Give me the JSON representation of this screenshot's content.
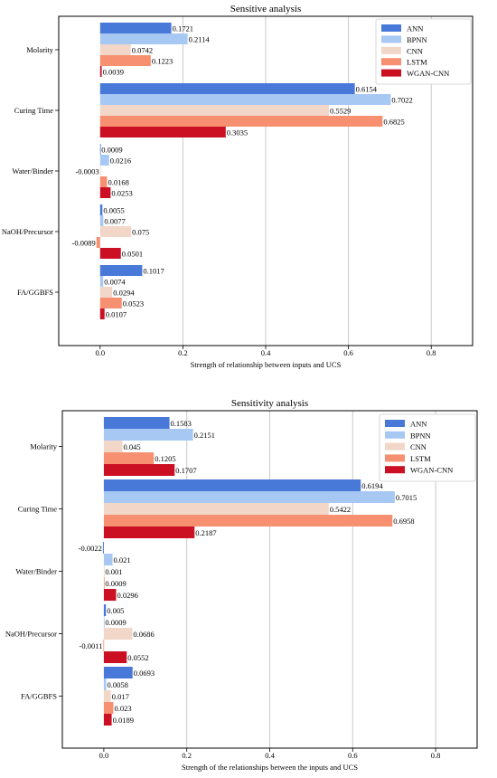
{
  "colors": {
    "ANN": "#4878d8",
    "BPNN": "#a8c8f4",
    "CNN": "#f2d6c8",
    "LSTM": "#f69070",
    "WGAN-CNN": "#cc1024",
    "grid": "#c8c8c8",
    "axis": "#000000"
  },
  "chart_data": [
    {
      "type": "bar",
      "orientation": "horizontal",
      "title": "Sensitive analysis",
      "xlabel": "Strength of relationship between inputs and UCS",
      "ylabel": "",
      "xlim": [
        -0.1,
        0.9
      ],
      "xticks": [
        "0.0",
        "0.2",
        "0.4",
        "0.6",
        "0.8"
      ],
      "grid": "vertical",
      "legend_position": "top-right",
      "categories": [
        "Molarity",
        "Curing Time",
        "Water/Binder",
        "NaOH/Precursor",
        "FA/GGBFS"
      ],
      "series": [
        {
          "name": "ANN",
          "values": [
            0.1721,
            0.6154,
            0.0009,
            0.0055,
            0.1017
          ]
        },
        {
          "name": "BPNN",
          "values": [
            0.2114,
            0.7022,
            0.0216,
            0.0077,
            0.0074
          ]
        },
        {
          "name": "CNN",
          "values": [
            0.0742,
            0.5529,
            -0.0003,
            0.075,
            0.0294
          ]
        },
        {
          "name": "LSTM",
          "values": [
            0.1223,
            0.6825,
            0.0168,
            -0.0089,
            0.0523
          ]
        },
        {
          "name": "WGAN-CNN",
          "values": [
            0.0039,
            0.3035,
            0.0253,
            0.0501,
            0.0107
          ]
        }
      ],
      "labels": [
        [
          "0.1721",
          "0.6154",
          "0.0009",
          "0.0055",
          "0.1017"
        ],
        [
          "0.2114",
          "0.7022",
          "0.0216",
          "0.0077",
          "0.0074"
        ],
        [
          "0.0742",
          "0.5529",
          "-0.0003",
          "0.075",
          "0.0294"
        ],
        [
          "0.1223",
          "0.6825",
          "0.0168",
          "-0.0089",
          "0.0523"
        ],
        [
          "0.0039",
          "0.3035",
          "0.0253",
          "0.0501",
          "0.0107"
        ]
      ]
    },
    {
      "type": "bar",
      "orientation": "horizontal",
      "title": "Sensitivity analysis",
      "xlabel": "Strength of the relationships between the inputs and UCS",
      "ylabel": "",
      "xlim": [
        -0.1,
        0.9
      ],
      "xticks": [
        "0.0",
        "0.2",
        "0.4",
        "0.6",
        "0.8"
      ],
      "grid": "vertical",
      "legend_position": "top-right",
      "categories": [
        "Molarity",
        "Curing Time",
        "Water/Binder",
        "NaOH/Precursor",
        "FA/GGBFS"
      ],
      "series": [
        {
          "name": "ANN",
          "values": [
            0.1583,
            0.6194,
            -0.0022,
            0.005,
            0.0693
          ]
        },
        {
          "name": "BPNN",
          "values": [
            0.2151,
            0.7015,
            0.021,
            0.0009,
            0.0058
          ]
        },
        {
          "name": "CNN",
          "values": [
            0.045,
            0.5422,
            0.001,
            0.0686,
            0.017
          ]
        },
        {
          "name": "LSTM",
          "values": [
            0.1205,
            0.6958,
            0.0009,
            -0.0011,
            0.023
          ]
        },
        {
          "name": "WGAN-CNN",
          "values": [
            0.1707,
            0.2187,
            0.0296,
            0.0552,
            0.0189
          ]
        }
      ],
      "labels": [
        [
          "0.1583",
          "0.6194",
          "-0.0022",
          "0.005",
          "0.0693"
        ],
        [
          "0.2151",
          "0.7015",
          "0.021",
          "0.0009",
          "0.0058"
        ],
        [
          "0.045",
          "0.5422",
          "0.001",
          "0.0686",
          "0.017"
        ],
        [
          "0.1205",
          "0.6958",
          "0.0009",
          "-0.0011",
          "0.023"
        ],
        [
          "0.1707",
          "0.2187",
          "0.0296",
          "0.0552",
          "0.0189"
        ]
      ]
    }
  ]
}
